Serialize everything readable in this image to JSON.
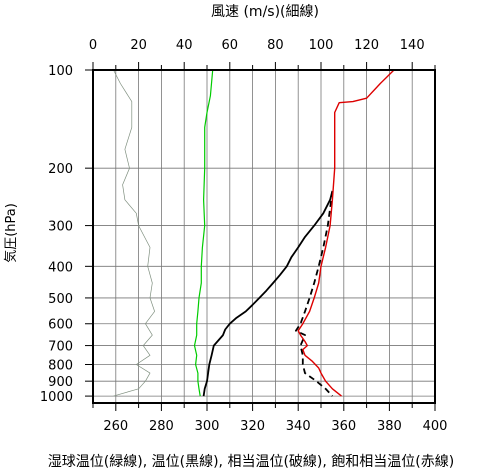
{
  "chart_data": {
    "type": "line",
    "title": "",
    "top_axis": {
      "label": "風速 (m/s)(細線)",
      "range": [
        0,
        150
      ],
      "ticks": [
        0,
        20,
        40,
        60,
        80,
        100,
        120,
        140
      ]
    },
    "bottom_axis": {
      "label": "湿球温位(緑線), 温位(黒線), 相当温位(破線), 飽和相当温位(赤線)",
      "range": [
        250,
        400
      ],
      "ticks": [
        260,
        280,
        300,
        320,
        340,
        360,
        380,
        400
      ]
    },
    "y_axis": {
      "label": "気圧(hPa)",
      "scale": "log",
      "reversed": true,
      "range": [
        100,
        1050
      ],
      "ticks": [
        100,
        200,
        300,
        400,
        500,
        600,
        700,
        800,
        900,
        1000
      ]
    },
    "grid": true,
    "series": [
      {
        "name": "風速",
        "color": "#7f8f7f",
        "axis": "top",
        "points": [
          [
            9,
            100
          ],
          [
            12,
            110
          ],
          [
            17,
            125
          ],
          [
            17,
            150
          ],
          [
            14,
            175
          ],
          [
            16,
            200
          ],
          [
            13,
            225
          ],
          [
            14,
            250
          ],
          [
            19,
            275
          ],
          [
            20,
            300
          ],
          [
            25,
            350
          ],
          [
            24,
            400
          ],
          [
            26,
            450
          ],
          [
            25,
            500
          ],
          [
            27,
            550
          ],
          [
            23,
            600
          ],
          [
            26,
            650
          ],
          [
            22,
            700
          ],
          [
            25,
            750
          ],
          [
            19,
            800
          ],
          [
            25,
            850
          ],
          [
            23,
            900
          ],
          [
            20,
            950
          ],
          [
            9,
            1000
          ]
        ]
      },
      {
        "name": "湿球温位",
        "color": "#00cc00",
        "axis": "bottom",
        "points": [
          [
            302.5,
            100
          ],
          [
            301.5,
            120
          ],
          [
            300,
            135
          ],
          [
            299,
            150
          ],
          [
            299,
            200
          ],
          [
            298.5,
            250
          ],
          [
            299,
            300
          ],
          [
            298,
            350
          ],
          [
            297.5,
            400
          ],
          [
            297.5,
            450
          ],
          [
            296.5,
            500
          ],
          [
            296,
            550
          ],
          [
            295.5,
            600
          ],
          [
            295.5,
            650
          ],
          [
            294.5,
            700
          ],
          [
            295.5,
            750
          ],
          [
            295,
            800
          ],
          [
            296,
            850
          ],
          [
            296,
            900
          ],
          [
            296.5,
            950
          ],
          [
            297,
            1000
          ]
        ]
      },
      {
        "name": "温位",
        "color": "#000000",
        "axis": "bottom",
        "points": [
          [
            355,
            235
          ],
          [
            354,
            250
          ],
          [
            351,
            275
          ],
          [
            347,
            300
          ],
          [
            343,
            325
          ],
          [
            340,
            350
          ],
          [
            337,
            375
          ],
          [
            335,
            400
          ],
          [
            332,
            425
          ],
          [
            329,
            450
          ],
          [
            326,
            475
          ],
          [
            323,
            500
          ],
          [
            320,
            525
          ],
          [
            317,
            550
          ],
          [
            313,
            575
          ],
          [
            310,
            600
          ],
          [
            308,
            625
          ],
          [
            307,
            650
          ],
          [
            305,
            675
          ],
          [
            303,
            700
          ],
          [
            302,
            750
          ],
          [
            301,
            800
          ],
          [
            300.5,
            850
          ],
          [
            300,
            900
          ],
          [
            299,
            950
          ],
          [
            298.5,
            1000
          ]
        ]
      },
      {
        "name": "相当温位",
        "color": "#000000",
        "dashed": true,
        "axis": "bottom",
        "points": [
          [
            355,
            235
          ],
          [
            353,
            300
          ],
          [
            351,
            350
          ],
          [
            349,
            400
          ],
          [
            347,
            450
          ],
          [
            345,
            500
          ],
          [
            343,
            550
          ],
          [
            341,
            600
          ],
          [
            339,
            630
          ],
          [
            343,
            650
          ],
          [
            341,
            700
          ],
          [
            342,
            750
          ],
          [
            342,
            800
          ],
          [
            343,
            850
          ],
          [
            348,
            900
          ],
          [
            352,
            950
          ],
          [
            355,
            1000
          ]
        ]
      },
      {
        "name": "飽和相当温位",
        "color": "#dd0000",
        "axis": "bottom",
        "points": [
          [
            382,
            100
          ],
          [
            376,
            110
          ],
          [
            370,
            122
          ],
          [
            364,
            125
          ],
          [
            358,
            126
          ],
          [
            356,
            135
          ],
          [
            356,
            150
          ],
          [
            356,
            200
          ],
          [
            355,
            250
          ],
          [
            354,
            300
          ],
          [
            352,
            350
          ],
          [
            350,
            400
          ],
          [
            349,
            450
          ],
          [
            347,
            500
          ],
          [
            345,
            550
          ],
          [
            342,
            600
          ],
          [
            340,
            630
          ],
          [
            341,
            650
          ],
          [
            343,
            680
          ],
          [
            344,
            700
          ],
          [
            342,
            720
          ],
          [
            343,
            750
          ],
          [
            346,
            780
          ],
          [
            349,
            820
          ],
          [
            350,
            850
          ],
          [
            352,
            900
          ],
          [
            355,
            950
          ],
          [
            359,
            1000
          ]
        ]
      }
    ]
  }
}
